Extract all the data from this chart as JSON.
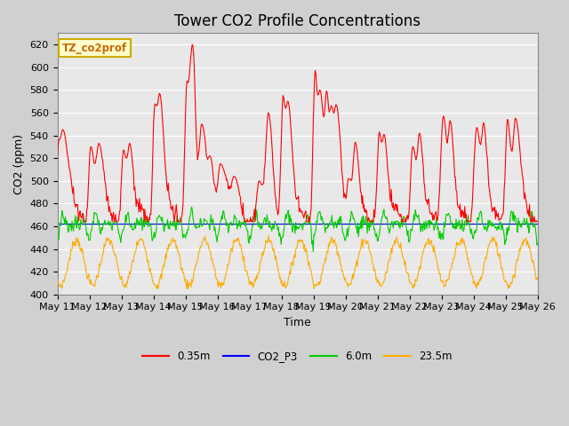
{
  "title": "Tower CO2 Profile Concentrations",
  "xlabel": "Time",
  "ylabel": "CO2 (ppm)",
  "ylim": [
    400,
    630
  ],
  "yticks": [
    400,
    420,
    440,
    460,
    480,
    500,
    520,
    540,
    560,
    580,
    600,
    620
  ],
  "plot_bg_color": "#e8e8e8",
  "fig_bg_color": "#d0d0d0",
  "annotation_text": "TZ_co2prof",
  "annotation_bg": "#ffffcc",
  "annotation_border": "#ccaa00",
  "legend_entries": [
    "0.35m",
    "CO2_P3",
    "6.0m",
    "23.5m"
  ],
  "line_colors": [
    "#ff0000",
    "#0000ff",
    "#00cc00",
    "#ffaa00"
  ],
  "n_days": 15,
  "x_tick_labels": [
    "May 11",
    "May 12",
    "May 13",
    "May 14",
    "May 15",
    "May 16",
    "May 17",
    "May 18",
    "May 19",
    "May 20",
    "May 21",
    "May 22",
    "May 23",
    "May 24",
    "May 25",
    "May 26"
  ],
  "title_fontsize": 12,
  "axis_label_fontsize": 9,
  "tick_fontsize": 8
}
